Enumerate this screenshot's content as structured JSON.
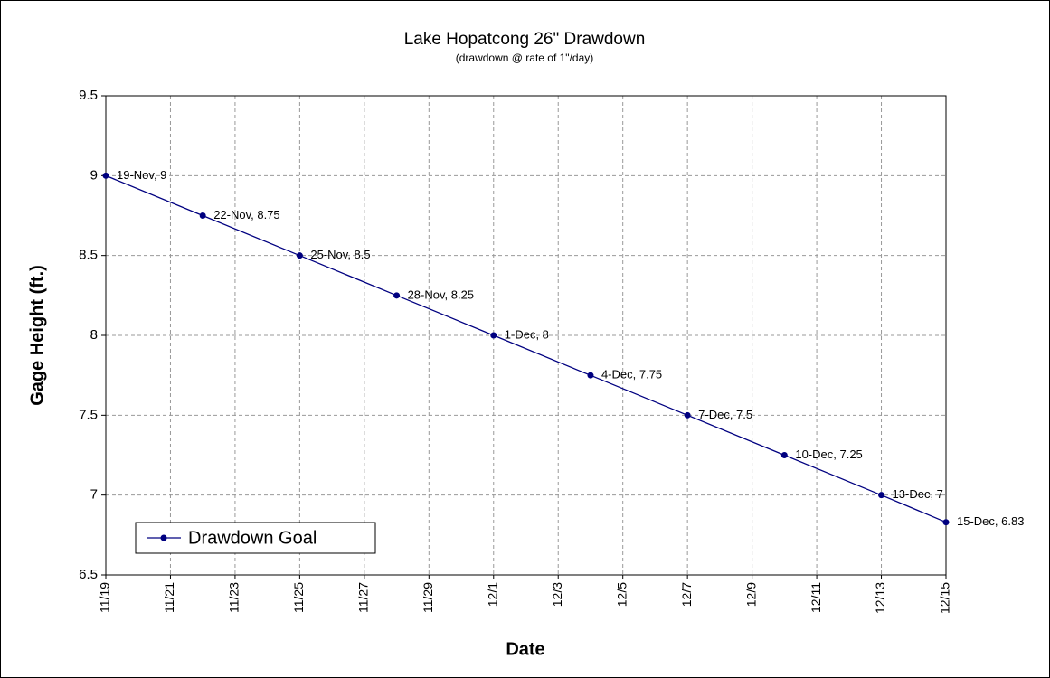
{
  "chart_data": {
    "type": "line",
    "title": "Lake Hopatcong 26\" Drawdown",
    "subtitle": "(drawdown @ rate of 1\"/day)",
    "x_label": "Date",
    "y_label": "Gage Height (ft.)",
    "x": [
      "11/19",
      "11/22",
      "11/25",
      "11/28",
      "12/1",
      "12/4",
      "12/7",
      "12/10",
      "12/13",
      "12/15"
    ],
    "series": [
      {
        "name": "Drawdown Goal",
        "color": "#000080",
        "values": [
          9,
          8.75,
          8.5,
          8.25,
          8,
          7.75,
          7.5,
          7.25,
          7,
          6.83
        ],
        "value_labels": [
          "19-Nov, 9",
          "22-Nov, 8.75",
          "25-Nov, 8.5",
          "28-Nov, 8.25",
          "1-Dec, 8",
          "4-Dec, 7.75",
          "7-Dec, 7.5",
          "10-Dec, 7.25",
          "13-Dec, 7",
          "15-Dec, 6.83"
        ]
      }
    ],
    "xlim": [
      "11/19",
      "12/15"
    ],
    "xticks": [
      "11/19",
      "11/21",
      "11/23",
      "11/25",
      "11/27",
      "11/29",
      "12/1",
      "12/3",
      "12/5",
      "12/7",
      "12/9",
      "12/11",
      "12/13",
      "12/15"
    ],
    "ylim": [
      6.5,
      9.5
    ],
    "yticks": [
      6.5,
      7,
      7.5,
      8,
      8.5,
      9,
      9.5
    ],
    "grid": true,
    "legend": "lower left"
  }
}
